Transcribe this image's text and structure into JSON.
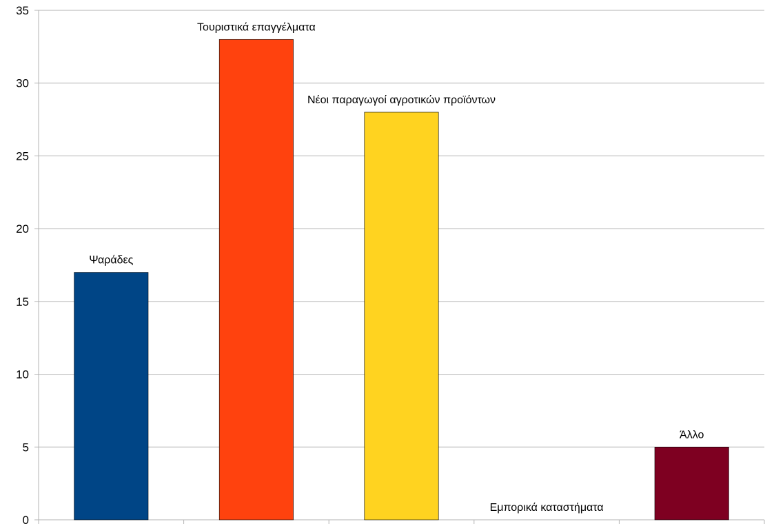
{
  "chart_data": {
    "type": "bar",
    "title": "",
    "xlabel": "",
    "ylabel": "",
    "ylim": [
      0,
      35
    ],
    "yticks": [
      0,
      5,
      10,
      15,
      20,
      25,
      30,
      35
    ],
    "grid": true,
    "legend": "none",
    "categories": [
      "Ψαράδες",
      "Τουριστικά επαγγέλματα",
      "Νέοι παραγωγοί αγροτικών προϊόντων",
      "Εμπορικά καταστήματα",
      "Άλλο"
    ],
    "values": [
      17,
      33,
      28,
      0,
      5
    ],
    "colors": [
      "#004586",
      "#ff420e",
      "#ffd320",
      "#579d1c",
      "#7e0021"
    ]
  }
}
